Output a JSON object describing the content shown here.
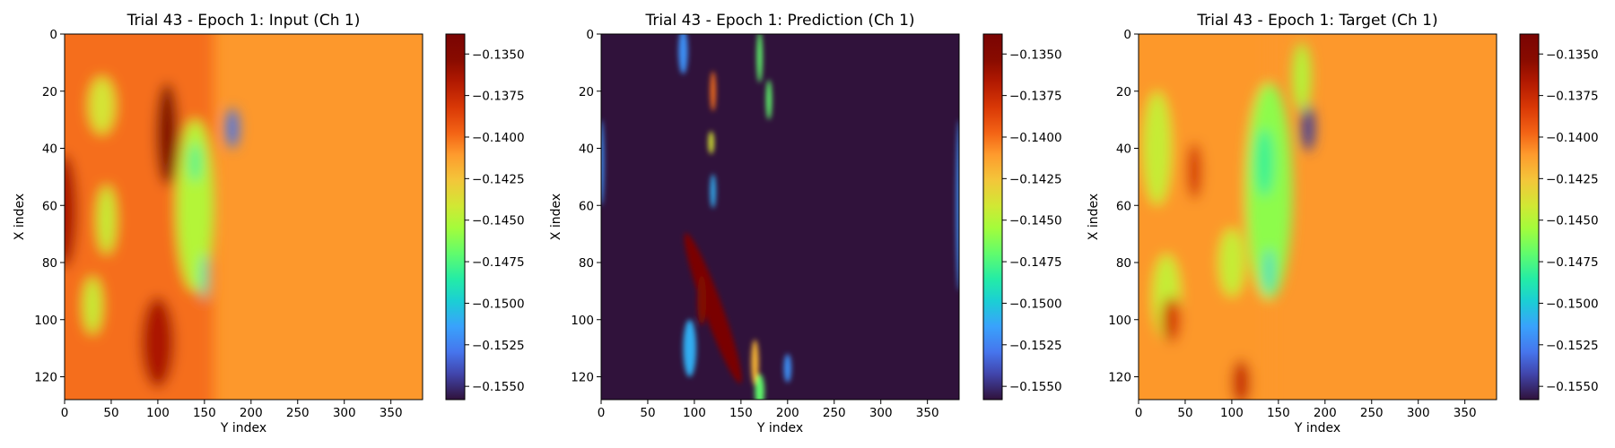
{
  "colormap": "turbo",
  "colorbar": {
    "vmin": -0.1558,
    "vmax": -0.1338,
    "ticks": [
      -0.135,
      -0.1375,
      -0.14,
      -0.1425,
      -0.145,
      -0.1475,
      -0.15,
      -0.1525,
      -0.155
    ],
    "tick_labels": [
      "−0.1350",
      "−0.1375",
      "−0.1400",
      "−0.1425",
      "−0.1450",
      "−0.1475",
      "−0.1500",
      "−0.1525",
      "−0.1550"
    ]
  },
  "chart_data": [
    {
      "type": "heatmap",
      "title": "Trial 43 - Epoch 1: Input (Ch 1)",
      "xlabel": "Y index",
      "ylabel": "X index",
      "xlim": [
        0,
        384
      ],
      "ylim": [
        128,
        0
      ],
      "xticks": [
        0,
        50,
        100,
        150,
        200,
        250,
        300,
        350
      ],
      "yticks": [
        0,
        20,
        40,
        60,
        80,
        100,
        120
      ],
      "background_value": -0.141,
      "features": [
        {
          "kind": "band",
          "x0": 0,
          "x1": 160,
          "value": -0.14,
          "desc": "orange band left of front"
        },
        {
          "kind": "blob",
          "x": 0,
          "y": 62,
          "rx": 14,
          "ry": 20,
          "value": -0.1365
        },
        {
          "kind": "blob",
          "x": 110,
          "y": 35,
          "rx": 12,
          "ry": 18,
          "value": -0.1345
        },
        {
          "kind": "blob",
          "x": 100,
          "y": 108,
          "rx": 18,
          "ry": 16,
          "value": -0.1365
        },
        {
          "kind": "blob",
          "x": 40,
          "y": 25,
          "rx": 14,
          "ry": 10,
          "value": -0.144
        },
        {
          "kind": "blob",
          "x": 45,
          "y": 65,
          "rx": 10,
          "ry": 12,
          "value": -0.1445
        },
        {
          "kind": "blob",
          "x": 30,
          "y": 95,
          "rx": 10,
          "ry": 10,
          "value": -0.1445
        },
        {
          "kind": "blob",
          "x": 140,
          "y": 60,
          "rx": 20,
          "ry": 30,
          "value": -0.145
        },
        {
          "kind": "blob",
          "x": 140,
          "y": 45,
          "rx": 6,
          "ry": 7,
          "value": -0.148
        },
        {
          "kind": "blob",
          "x": 150,
          "y": 85,
          "rx": 4,
          "ry": 8,
          "value": -0.149
        },
        {
          "kind": "blob",
          "x": 180,
          "y": 33,
          "rx": 7,
          "ry": 7,
          "value": -0.153
        }
      ]
    },
    {
      "type": "heatmap",
      "title": "Trial 43 - Epoch 1: Prediction (Ch 1)",
      "xlabel": "Y index",
      "ylabel": "X index",
      "xlim": [
        0,
        384
      ],
      "ylim": [
        128,
        0
      ],
      "xticks": [
        0,
        50,
        100,
        150,
        200,
        250,
        300,
        350
      ],
      "yticks": [
        0,
        20,
        40,
        60,
        80,
        100,
        120
      ],
      "background_value": -0.156,
      "features": [
        {
          "kind": "blob",
          "x": 120,
          "y": 96,
          "rx": 10,
          "ry": 28,
          "value": -0.1338,
          "angle": -20
        },
        {
          "kind": "blob",
          "x": 108,
          "y": 93,
          "rx": 5,
          "ry": 9,
          "value": -0.1345
        },
        {
          "kind": "blob",
          "x": 165,
          "y": 115,
          "rx": 4,
          "ry": 8,
          "value": -0.142
        },
        {
          "kind": "blob",
          "x": 120,
          "y": 20,
          "rx": 3,
          "ry": 7,
          "value": -0.14
        },
        {
          "kind": "blob",
          "x": 118,
          "y": 38,
          "rx": 3,
          "ry": 4,
          "value": -0.144
        },
        {
          "kind": "blob",
          "x": 170,
          "y": 8,
          "rx": 3,
          "ry": 9,
          "value": -0.147
        },
        {
          "kind": "blob",
          "x": 180,
          "y": 23,
          "rx": 3,
          "ry": 7,
          "value": -0.147
        },
        {
          "kind": "blob",
          "x": 88,
          "y": 6,
          "rx": 5,
          "ry": 8,
          "value": -0.152
        },
        {
          "kind": "blob",
          "x": 95,
          "y": 110,
          "rx": 7,
          "ry": 10,
          "value": -0.151
        },
        {
          "kind": "blob",
          "x": 120,
          "y": 55,
          "rx": 3,
          "ry": 6,
          "value": -0.151
        },
        {
          "kind": "blob",
          "x": 170,
          "y": 125,
          "rx": 5,
          "ry": 6,
          "value": -0.147
        },
        {
          "kind": "blob",
          "x": 0,
          "y": 45,
          "rx": 3,
          "ry": 15,
          "value": -0.152
        },
        {
          "kind": "blob",
          "x": 384,
          "y": 60,
          "rx": 3,
          "ry": 30,
          "value": -0.152
        },
        {
          "kind": "blob",
          "x": 200,
          "y": 117,
          "rx": 4,
          "ry": 5,
          "value": -0.152
        }
      ]
    },
    {
      "type": "heatmap",
      "title": "Trial 43 - Epoch 1: Target (Ch 1)",
      "xlabel": "Y index",
      "ylabel": "X index",
      "xlim": [
        0,
        384
      ],
      "ylim": [
        128,
        0
      ],
      "xticks": [
        0,
        50,
        100,
        150,
        200,
        250,
        300,
        350
      ],
      "yticks": [
        0,
        20,
        40,
        60,
        80,
        100,
        120
      ],
      "background_value": -0.141,
      "features": [
        {
          "kind": "band",
          "x0": 0,
          "x1": 140,
          "value": -0.141,
          "desc": "mixed band left of front"
        },
        {
          "kind": "blob",
          "x": 140,
          "y": 55,
          "rx": 25,
          "ry": 38,
          "value": -0.146
        },
        {
          "kind": "blob",
          "x": 135,
          "y": 45,
          "rx": 10,
          "ry": 12,
          "value": -0.148
        },
        {
          "kind": "blob",
          "x": 140,
          "y": 83,
          "rx": 4,
          "ry": 8,
          "value": -0.15
        },
        {
          "kind": "blob",
          "x": 182,
          "y": 33,
          "rx": 7,
          "ry": 8,
          "value": -0.1545
        },
        {
          "kind": "blob",
          "x": 20,
          "y": 40,
          "rx": 15,
          "ry": 20,
          "value": -0.1445
        },
        {
          "kind": "blob",
          "x": 30,
          "y": 92,
          "rx": 15,
          "ry": 15,
          "value": -0.1445
        },
        {
          "kind": "blob",
          "x": 60,
          "y": 48,
          "rx": 8,
          "ry": 10,
          "value": -0.138
        },
        {
          "kind": "blob",
          "x": 35,
          "y": 100,
          "rx": 10,
          "ry": 8,
          "value": -0.138
        },
        {
          "kind": "blob",
          "x": 110,
          "y": 122,
          "rx": 10,
          "ry": 8,
          "value": -0.1375
        },
        {
          "kind": "blob",
          "x": 100,
          "y": 80,
          "rx": 14,
          "ry": 12,
          "value": -0.1445
        },
        {
          "kind": "blob",
          "x": 175,
          "y": 15,
          "rx": 10,
          "ry": 12,
          "value": -0.145
        }
      ]
    }
  ]
}
